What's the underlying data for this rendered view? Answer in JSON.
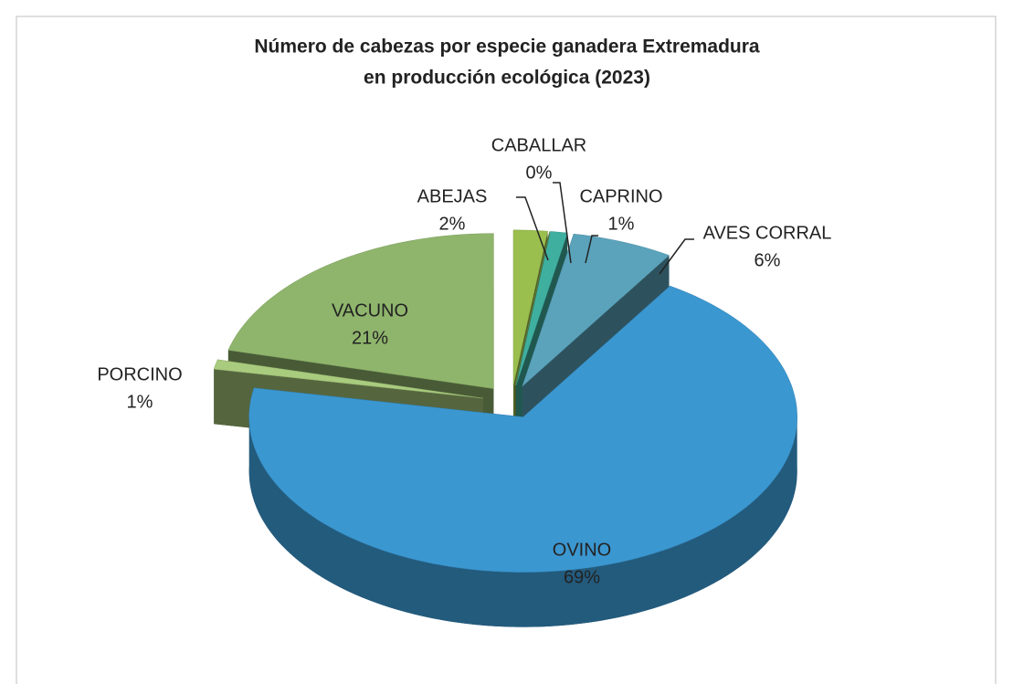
{
  "chart_data": {
    "type": "pie3d",
    "title": [
      "Número de cabezas por especie ganadera Extremadura",
      "en producción ecológica  (2023)"
    ],
    "categories": [
      "ABEJAS",
      "CABALLAR",
      "CAPRINO",
      "AVES CORRAL",
      "OVINO",
      "PORCINO",
      "VACUNO"
    ],
    "values": [
      2,
      0,
      1,
      6,
      69,
      1,
      21
    ],
    "value_labels": [
      "2%",
      "0%",
      "1%",
      "6%",
      "69%",
      "1%",
      "21%"
    ],
    "colors": [
      "#9bbf4f",
      "#7fa34a",
      "#3fb0a0",
      "#5aa3bb",
      "#3b97d0",
      "#a9cb7e",
      "#8fb56c"
    ]
  }
}
